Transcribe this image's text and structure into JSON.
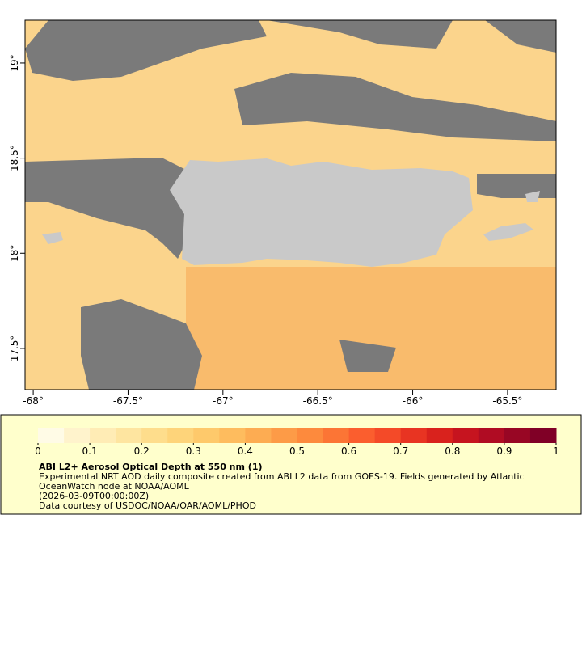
{
  "map": {
    "xlim": [
      -68.043,
      -65.244
    ],
    "ylim": [
      17.283,
      19.225
    ],
    "lon_ticks": [
      {
        "value": -68,
        "label": "-68°"
      },
      {
        "value": -67.5,
        "label": "-67.5°"
      },
      {
        "value": -67,
        "label": "-67°"
      },
      {
        "value": -66.5,
        "label": "-66.5°"
      },
      {
        "value": -66,
        "label": "-66°"
      },
      {
        "value": -65.5,
        "label": "-65.5°"
      }
    ],
    "lat_ticks": [
      {
        "value": 17.5,
        "label": "17.5°"
      },
      {
        "value": 18,
        "label": "18°"
      },
      {
        "value": 18.5,
        "label": "18.5°"
      },
      {
        "value": 19,
        "label": "19°"
      }
    ]
  },
  "colorbar": {
    "lim": [
      0,
      1
    ],
    "ticks": [
      0,
      0.1,
      0.2,
      0.3,
      0.4,
      0.5,
      0.6,
      0.7,
      0.8,
      0.9,
      1
    ],
    "colors": [
      "#fffbe6",
      "#fff3cc",
      "#ffecb5",
      "#fee5a0",
      "#fedd8c",
      "#fed47a",
      "#fec96b",
      "#febc5e",
      "#fdac52",
      "#fd9b47",
      "#fd8a3d",
      "#fc7535",
      "#fb5e2e",
      "#f44a28",
      "#e83422",
      "#d9221d",
      "#c6141f",
      "#b00c23",
      "#980624",
      "#800026"
    ],
    "title": "ABI L2+ Aerosol Optical Depth at 550 nm (1)",
    "lines": [
      "Experimental NRT AOD daily composite created from ABI L2 data from GOES-19. Fields generated by Atlantic",
      "OceanWatch node at NOAA/AOML",
      "(2026-03-09T00:00:00Z)",
      "Data courtesy of USDOC/NOAA/OAR/AOML/PHOD"
    ]
  }
}
